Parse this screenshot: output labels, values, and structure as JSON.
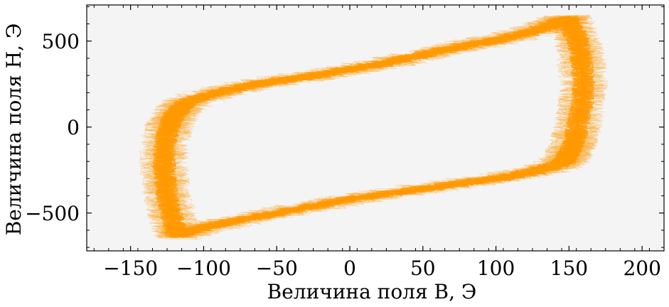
{
  "chart_data": {
    "type": "line",
    "title": "",
    "xlabel": "Величина поля B, Э",
    "ylabel": "Величина поля H, Э",
    "xlim": [
      -180,
      215
    ],
    "ylim": [
      -720,
      710
    ],
    "x_ticks": [
      -150,
      -100,
      -50,
      0,
      50,
      100,
      150,
      200
    ],
    "x_tick_labels": [
      "−150",
      "−100",
      "−50",
      "0",
      "50",
      "100",
      "150",
      "200"
    ],
    "y_ticks": [
      -500,
      0,
      500
    ],
    "y_tick_labels": [
      "−500",
      "0",
      "500"
    ],
    "grid": false,
    "plot_background": "#f4f4f4",
    "series_color": "#ff9900",
    "series": [
      {
        "x": [
          150,
          153,
          156,
          158,
          159,
          160,
          159,
          157,
          155,
          153,
          151,
          148,
          145,
          135,
          120,
          100,
          75,
          50,
          25,
          0,
          -25,
          -50,
          -75,
          -95,
          -110,
          -118
        ],
        "y": [
          630,
          560,
          500,
          420,
          340,
          240,
          150,
          60,
          -30,
          -90,
          -140,
          -180,
          -210,
          -240,
          -270,
          -300,
          -330,
          -360,
          -390,
          -420,
          -460,
          -500,
          -540,
          -575,
          -605,
          -630
        ]
      },
      {
        "x": [
          -118,
          -120,
          -123,
          -125,
          -126,
          -127,
          -127,
          -126,
          -124,
          -122,
          -119,
          -115,
          -110,
          -95,
          -80,
          -60,
          -40,
          -20,
          0,
          20,
          40,
          60,
          80,
          100,
          120,
          135,
          145,
          150
        ],
        "y": [
          -630,
          -560,
          -480,
          -400,
          -320,
          -240,
          -160,
          -80,
          -10,
          40,
          80,
          115,
          150,
          190,
          220,
          255,
          280,
          305,
          335,
          365,
          400,
          440,
          475,
          505,
          545,
          585,
          615,
          630
        ]
      }
    ]
  }
}
